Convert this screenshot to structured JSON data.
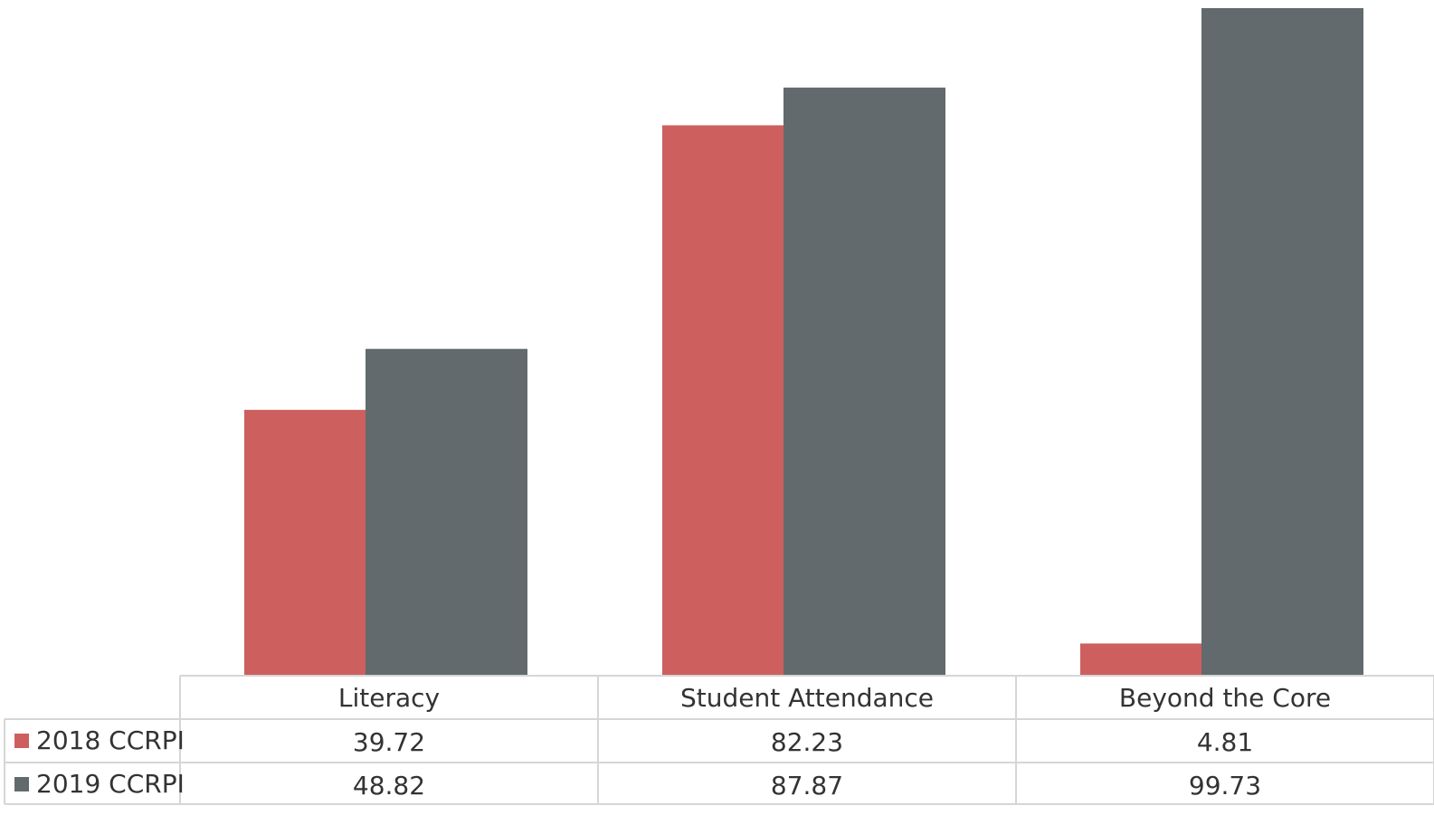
{
  "chart_data": {
    "type": "bar",
    "categories": [
      "Literacy",
      "Student Attendance",
      "Beyond the Core"
    ],
    "series": [
      {
        "name": "2018 CCRPI",
        "values": [
          39.72,
          82.23,
          4.81
        ],
        "color": "#cd5f5f"
      },
      {
        "name": "2019 CCRPI",
        "values": [
          48.82,
          87.87,
          99.73
        ],
        "color": "#626a6d"
      }
    ],
    "value_labels": [
      [
        "39.72",
        "82.23",
        "4.81"
      ],
      [
        "48.82",
        "87.87",
        "99.73"
      ]
    ],
    "ylim": [
      0,
      100
    ],
    "grid": false,
    "legend": "data-table"
  }
}
